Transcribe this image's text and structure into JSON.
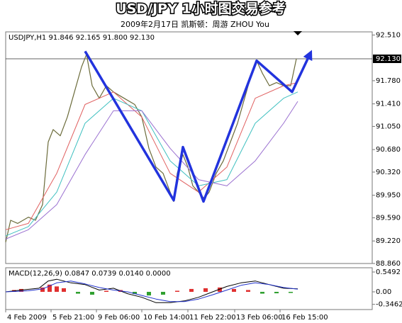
{
  "header": {
    "title": "USD/JPY 1小时图交易参考",
    "subtitle": "2009年2月17日  凯斯顿：周游 ZHOU You"
  },
  "chart_data": [
    {
      "type": "line",
      "info": "USDJPY,H1  91.846 92.165 91.800 92.130",
      "xlim": [
        0,
        517
      ],
      "ylim": [
        88.86,
        92.56
      ],
      "xticks": [
        {
          "value": 0,
          "label": "4 Feb 2009"
        },
        {
          "value": 64,
          "label": "5 Feb 21:00"
        },
        {
          "value": 128,
          "label": "9 Feb 06:00"
        },
        {
          "value": 192,
          "label": "10 Feb 14:00"
        },
        {
          "value": 257,
          "label": "11 Feb 22:00"
        },
        {
          "value": 323,
          "label": "13 Feb 06:00"
        },
        {
          "value": 387,
          "label": "16 Feb 15:00"
        }
      ],
      "yticks": [
        {
          "value": 92.51,
          "label": "92.510"
        },
        {
          "value": 91.78,
          "label": "91.780"
        },
        {
          "value": 91.41,
          "label": "91.410"
        },
        {
          "value": 91.05,
          "label": "91.050"
        },
        {
          "value": 90.68,
          "label": "90.680"
        },
        {
          "value": 90.32,
          "label": "90.320"
        },
        {
          "value": 89.95,
          "label": "89.950"
        },
        {
          "value": 89.59,
          "label": "89.590"
        },
        {
          "value": 89.22,
          "label": "89.220"
        },
        {
          "value": 88.86,
          "label": "88.860"
        }
      ],
      "last_price": {
        "value": 92.13,
        "label": "92.130"
      },
      "series": [
        {
          "color": "#6b6b3a",
          "line_width": 1.2,
          "x": [
            0,
            7,
            17,
            32,
            42,
            52,
            60,
            67,
            77,
            87,
            97,
            107,
            114,
            122,
            132,
            142,
            152,
            167,
            182,
            192,
            202,
            212,
            222,
            232,
            237,
            242,
            250,
            257,
            264,
            272,
            280,
            287,
            297,
            307,
            317,
            327,
            337,
            347,
            354,
            362,
            372,
            382,
            392,
            402,
            410
          ],
          "values": [
            89.2,
            89.55,
            89.5,
            89.6,
            89.55,
            89.8,
            90.8,
            91.0,
            90.9,
            91.2,
            91.6,
            92.0,
            92.2,
            91.7,
            91.5,
            91.7,
            91.6,
            91.5,
            91.4,
            91.2,
            90.7,
            90.4,
            90.3,
            90.0,
            89.85,
            90.3,
            90.6,
            90.4,
            90.1,
            90.0,
            89.9,
            90.0,
            90.3,
            90.5,
            90.8,
            91.1,
            91.5,
            91.9,
            92.1,
            91.9,
            91.7,
            91.75,
            91.7,
            91.7,
            92.13
          ]
        },
        {
          "color": "#e06060",
          "line_width": 1,
          "x": [
            0,
            32,
            72,
            112,
            152,
            192,
            232,
            272,
            312,
            352,
            392,
            412
          ],
          "values": [
            89.4,
            89.5,
            90.3,
            91.4,
            91.6,
            91.2,
            90.3,
            90.0,
            90.4,
            91.5,
            91.7,
            91.75
          ]
        },
        {
          "color": "#40c0c0",
          "line_width": 1,
          "x": [
            0,
            32,
            72,
            112,
            152,
            192,
            232,
            272,
            312,
            352,
            392,
            412
          ],
          "values": [
            89.3,
            89.45,
            90.0,
            91.1,
            91.5,
            91.3,
            90.5,
            90.1,
            90.2,
            91.1,
            91.5,
            91.6
          ]
        },
        {
          "color": "#9a70d0",
          "line_width": 1,
          "x": [
            0,
            32,
            72,
            112,
            152,
            192,
            232,
            272,
            312,
            352,
            392,
            412
          ],
          "values": [
            89.25,
            89.4,
            89.8,
            90.6,
            91.3,
            91.3,
            90.7,
            90.2,
            90.1,
            90.5,
            91.1,
            91.45
          ]
        },
        {
          "color": "#2233dd",
          "line_width": 3.5,
          "arrow": true,
          "x": [
            112,
            237,
            250,
            279,
            354,
            404,
            429
          ],
          "values": [
            92.25,
            89.87,
            90.72,
            89.85,
            92.1,
            91.6,
            92.2
          ]
        }
      ]
    },
    {
      "type": "macd",
      "info": "MACD(12,26,9) 0.0847 0.0739 0.0140 0.0000",
      "xlim": [
        0,
        517
      ],
      "ylim": [
        -0.49,
        0.667
      ],
      "yticks": [
        0.5492,
        {
          "value": 0,
          "label": "0.00"
        },
        -0.3462
      ],
      "bars": {
        "up_color": "#e03030",
        "down_color": "#30a030",
        "x": [
          12,
          22,
          52,
          62,
          72,
          82,
          102,
          122,
          142,
          162,
          182,
          202,
          222,
          242,
          262,
          282,
          302,
          322,
          342,
          362,
          382,
          402
        ],
        "values": [
          0.05,
          0.08,
          0.12,
          0.2,
          0.15,
          0.1,
          -0.05,
          -0.08,
          0.03,
          0.05,
          -0.06,
          -0.1,
          -0.08,
          0.03,
          0.08,
          0.1,
          0.12,
          0.08,
          0.05,
          -0.05,
          -0.04,
          -0.03
        ]
      },
      "series": [
        {
          "color": "#000000",
          "x": [
            0,
            22,
            47,
            60,
            72,
            92,
            112,
            132,
            152,
            172,
            192,
            212,
            232,
            252,
            272,
            292,
            312,
            332,
            352,
            372,
            392,
            412
          ],
          "values": [
            0.0,
            0.05,
            0.1,
            0.3,
            0.35,
            0.25,
            0.2,
            0.05,
            0.1,
            -0.05,
            -0.15,
            -0.3,
            -0.3,
            -0.25,
            -0.15,
            0.0,
            0.15,
            0.25,
            0.3,
            0.2,
            0.1,
            0.0847
          ]
        },
        {
          "color": "#2233cc",
          "x": [
            0,
            32,
            52,
            72,
            92,
            112,
            132,
            152,
            172,
            192,
            212,
            232,
            252,
            272,
            292,
            312,
            332,
            352,
            372,
            392,
            412
          ],
          "values": [
            0.0,
            0.03,
            0.08,
            0.25,
            0.3,
            0.22,
            0.12,
            0.05,
            0.0,
            -0.1,
            -0.2,
            -0.27,
            -0.27,
            -0.2,
            -0.08,
            0.05,
            0.18,
            0.25,
            0.2,
            0.12,
            0.0739
          ]
        }
      ]
    }
  ]
}
